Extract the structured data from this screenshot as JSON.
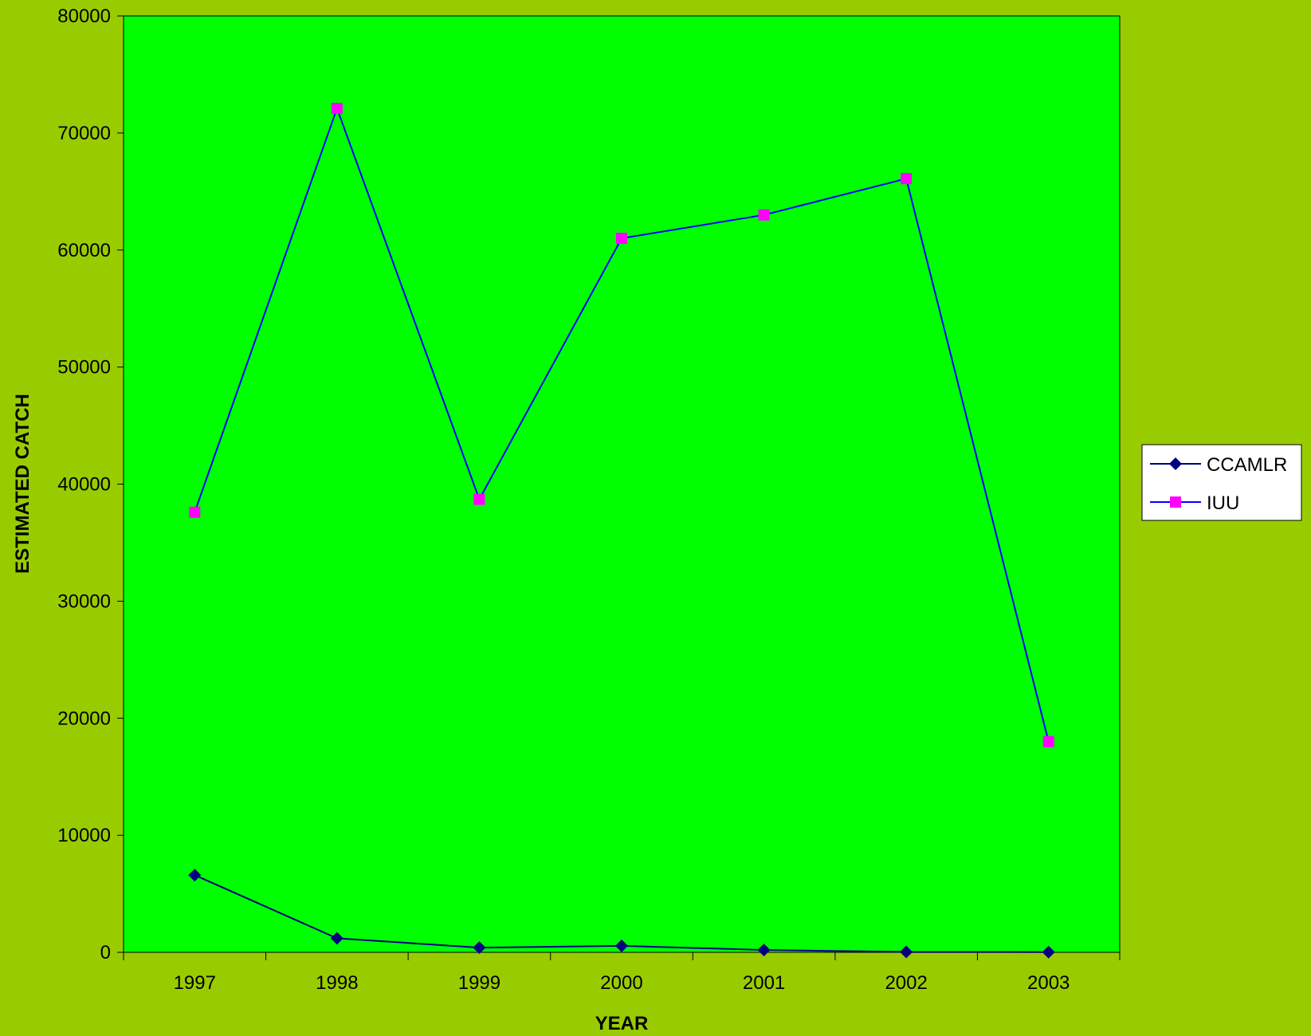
{
  "chart_data": {
    "type": "line",
    "title": "",
    "xlabel": "YEAR",
    "ylabel": "ESTIMATED CATCH",
    "categories": [
      "1997",
      "1998",
      "1999",
      "2000",
      "2001",
      "2002",
      "2003"
    ],
    "ylim": [
      0,
      80000
    ],
    "yticks": [
      0,
      10000,
      20000,
      30000,
      40000,
      50000,
      60000,
      70000,
      80000
    ],
    "grid": false,
    "legend_position": "right",
    "plot_background": "#00ff00",
    "page_background": "#99cc00",
    "series": [
      {
        "name": "CCAMLR",
        "color": "#000080",
        "line_color": "#000080",
        "marker": "diamond",
        "values": [
          6600,
          1200,
          400,
          550,
          200,
          30,
          20
        ]
      },
      {
        "name": "IUU",
        "color": "#ff00ff",
        "line_color": "#0000ff",
        "marker": "square",
        "values": [
          37600,
          72100,
          38700,
          61000,
          63000,
          66100,
          18000
        ]
      }
    ]
  }
}
